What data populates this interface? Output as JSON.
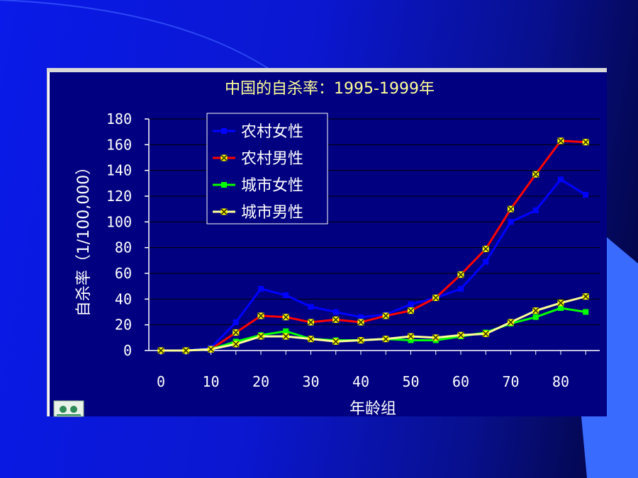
{
  "slide": {
    "background_colors": [
      "#0a1ae8",
      "#02043a"
    ],
    "accent_shape_color": "#3a6bff",
    "chart_background": "#000080"
  },
  "chart_data": {
    "type": "line",
    "title": "中国的自杀率：1995-1999年",
    "xlabel": "年龄组",
    "ylabel": "自杀率（1/100,000）",
    "xlim": [
      -5,
      88
    ],
    "ylim": [
      0,
      180
    ],
    "x_ticks": [
      0,
      10,
      20,
      30,
      40,
      50,
      60,
      70,
      80
    ],
    "y_ticks": [
      0,
      20,
      40,
      60,
      80,
      100,
      120,
      140,
      160,
      180
    ],
    "grid": "horizontal",
    "legend_position": "top-left",
    "x": [
      0,
      5,
      10,
      15,
      20,
      25,
      30,
      35,
      40,
      45,
      50,
      55,
      60,
      65,
      70,
      75,
      80,
      85
    ],
    "series": [
      {
        "name": "农村女性",
        "color": "#0000ff",
        "marker": "square",
        "values": [
          0,
          0,
          2,
          22,
          48,
          43,
          34,
          30,
          26,
          28,
          36,
          41,
          48,
          69,
          100,
          109,
          133,
          121
        ]
      },
      {
        "name": "农村男性",
        "color": "#ff0000",
        "marker": "x",
        "values": [
          0,
          0,
          1,
          14,
          27,
          26,
          22,
          24,
          22,
          27,
          31,
          41,
          59,
          79,
          110,
          137,
          163,
          162
        ]
      },
      {
        "name": "城市女性",
        "color": "#00ff00",
        "marker": "square",
        "values": [
          0,
          0,
          1,
          7,
          12,
          15,
          9,
          8,
          8,
          9,
          8,
          8,
          11,
          14,
          21,
          26,
          33,
          30
        ]
      },
      {
        "name": "城市男性",
        "color": "#ffff99",
        "marker": "x",
        "values": [
          0,
          0,
          1,
          5,
          11,
          11,
          9,
          7,
          8,
          9,
          11,
          10,
          12,
          13,
          22,
          31,
          37,
          42
        ]
      }
    ]
  }
}
